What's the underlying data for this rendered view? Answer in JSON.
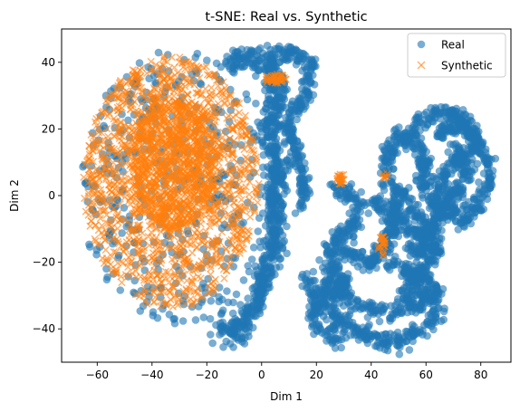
{
  "chart_data": {
    "type": "scatter",
    "title": "t-SNE: Real vs. Synthetic",
    "xlabel": "Dim 1",
    "ylabel": "Dim 2",
    "xlim": [
      -73,
      91
    ],
    "ylim": [
      -50,
      50
    ],
    "xticks": [
      -60,
      -40,
      -20,
      0,
      20,
      40,
      60,
      80
    ],
    "yticks": [
      -40,
      -20,
      0,
      20,
      40
    ],
    "grid": false,
    "legend_position": "top-right",
    "series": [
      {
        "name": "Real",
        "marker": "circle",
        "color": "#1f77b4",
        "alpha": 0.6,
        "clusters": [
          {
            "kind": "disc",
            "center": [
              -30,
              2
            ],
            "radii": [
              36,
              42
            ],
            "count": 430
          },
          {
            "kind": "band",
            "pts": [
              [
                -12,
                40
              ],
              [
                -4,
                42
              ],
              [
                4,
                38
              ],
              [
                6,
                28
              ],
              [
                2,
                18
              ],
              [
                6,
                8
              ],
              [
                4,
                -2
              ],
              [
                6,
                -12
              ],
              [
                2,
                -22
              ],
              [
                -2,
                -32
              ],
              [
                -8,
                -40
              ],
              [
                -16,
                -42
              ]
            ],
            "width": 4,
            "count": 700
          },
          {
            "kind": "band",
            "pts": [
              [
                2,
                42
              ],
              [
                10,
                43
              ],
              [
                18,
                40
              ],
              [
                16,
                30
              ],
              [
                10,
                22
              ],
              [
                12,
                12
              ],
              [
                16,
                4
              ],
              [
                14,
                -4
              ]
            ],
            "width": 3,
            "count": 260
          },
          {
            "kind": "band",
            "pts": [
              [
                26,
                2
              ],
              [
                34,
                0
              ],
              [
                36,
                -8
              ],
              [
                28,
                -12
              ],
              [
                24,
                -20
              ],
              [
                30,
                -26
              ],
              [
                26,
                -32
              ]
            ],
            "width": 3,
            "count": 220
          },
          {
            "kind": "band",
            "pts": [
              [
                40,
                -2
              ],
              [
                46,
                -4
              ],
              [
                48,
                -10
              ],
              [
                44,
                -16
              ],
              [
                40,
                -20
              ],
              [
                34,
                -18
              ],
              [
                28,
                -16
              ]
            ],
            "width": 3,
            "count": 200
          },
          {
            "kind": "band",
            "pts": [
              [
                16,
                -24
              ],
              [
                20,
                -30
              ],
              [
                26,
                -36
              ],
              [
                34,
                -40
              ],
              [
                42,
                -44
              ],
              [
                50,
                -44
              ],
              [
                58,
                -40
              ],
              [
                64,
                -36
              ],
              [
                62,
                -30
              ],
              [
                56,
                -26
              ],
              [
                52,
                -32
              ],
              [
                46,
                -36
              ],
              [
                38,
                -34
              ],
              [
                30,
                -30
              ],
              [
                24,
                -26
              ],
              [
                18,
                -36
              ],
              [
                22,
                -40
              ],
              [
                30,
                -44
              ]
            ],
            "width": 3,
            "count": 500
          },
          {
            "kind": "band",
            "pts": [
              [
                46,
                -20
              ],
              [
                52,
                -22
              ],
              [
                58,
                -24
              ],
              [
                64,
                -28
              ],
              [
                58,
                -32
              ],
              [
                52,
                -34
              ]
            ],
            "width": 2.5,
            "count": 140
          },
          {
            "kind": "band",
            "pts": [
              [
                46,
                6
              ],
              [
                46,
                14
              ],
              [
                50,
                18
              ],
              [
                56,
                16
              ],
              [
                60,
                10
              ],
              [
                58,
                4
              ],
              [
                62,
                -2
              ],
              [
                66,
                -6
              ],
              [
                60,
                -12
              ],
              [
                54,
                -10
              ],
              [
                50,
                -6
              ],
              [
                48,
                0
              ]
            ],
            "width": 3,
            "count": 340
          },
          {
            "kind": "band",
            "pts": [
              [
                54,
                16
              ],
              [
                56,
                22
              ],
              [
                62,
                24
              ],
              [
                68,
                26
              ],
              [
                72,
                24
              ],
              [
                76,
                20
              ],
              [
                80,
                14
              ],
              [
                84,
                8
              ],
              [
                82,
                2
              ],
              [
                78,
                -4
              ],
              [
                74,
                -8
              ],
              [
                68,
                -4
              ],
              [
                64,
                2
              ],
              [
                68,
                8
              ],
              [
                72,
                12
              ],
              [
                76,
                8
              ],
              [
                72,
                2
              ],
              [
                66,
                -4
              ],
              [
                62,
                -12
              ],
              [
                58,
                -18
              ],
              [
                54,
                -14
              ]
            ],
            "width": 3,
            "count": 540
          },
          {
            "kind": "band",
            "pts": [
              [
                64,
                18
              ],
              [
                68,
                20
              ],
              [
                74,
                22
              ],
              [
                78,
                16
              ],
              [
                74,
                10
              ],
              [
                70,
                16
              ]
            ],
            "width": 2.5,
            "count": 140
          },
          {
            "kind": "band",
            "pts": [
              [
                44,
                4
              ],
              [
                50,
                2
              ],
              [
                56,
                -4
              ],
              [
                60,
                -10
              ],
              [
                64,
                -16
              ],
              [
                60,
                -22
              ],
              [
                54,
                -26
              ]
            ],
            "width": 2.5,
            "count": 170
          }
        ]
      },
      {
        "name": "Synthetic",
        "marker": "x",
        "color": "#ff7f0e",
        "alpha": 0.6,
        "clusters": [
          {
            "kind": "disc",
            "center": [
              -33,
              4
            ],
            "radii": [
              32,
              38
            ],
            "count": 1500
          },
          {
            "kind": "disc",
            "center": [
              -32,
              10
            ],
            "radii": [
              16,
              20
            ],
            "count": 900
          },
          {
            "kind": "disc",
            "center": [
              5,
              35
            ],
            "radii": [
              4,
              1.5
            ],
            "count": 45
          },
          {
            "kind": "disc",
            "center": [
              29,
              5
            ],
            "radii": [
              1.6,
              1.6
            ],
            "count": 22
          },
          {
            "kind": "disc",
            "center": [
              45,
              6
            ],
            "radii": [
              1.0,
              1.0
            ],
            "count": 8
          },
          {
            "kind": "disc",
            "center": [
              44,
              -15
            ],
            "radii": [
              1.5,
              3.5
            ],
            "count": 26
          }
        ]
      }
    ]
  }
}
